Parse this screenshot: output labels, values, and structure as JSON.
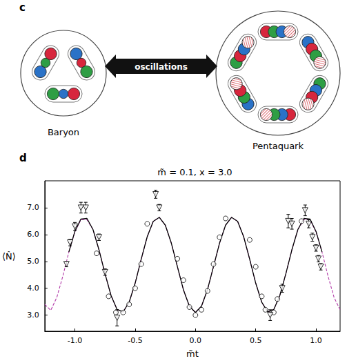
{
  "panel_c": {
    "letter": "c",
    "nodes": [
      {
        "label": "Baryon"
      },
      {
        "label": "Pentaquark"
      }
    ],
    "edge": {
      "label": "oscillations",
      "direction": "both"
    }
  },
  "panel_d": {
    "letter": "d"
  },
  "chart_data": {
    "type": "line",
    "title": "m̃ = 0.1, x = 3.0",
    "x_label": "m̃t",
    "y_label": "⟨N̂⟩",
    "xlim": [
      -1.25,
      1.2
    ],
    "ylim": [
      2.4,
      8.0
    ],
    "xticks": [
      {
        "value": -1.0,
        "label": "-1.0"
      },
      {
        "value": -0.5,
        "label": "-0.5"
      },
      {
        "value": 0.0,
        "label": "0.0"
      },
      {
        "value": 0.5,
        "label": "0.5"
      },
      {
        "value": 1.0,
        "label": "1.0"
      }
    ],
    "yticks": [
      {
        "value": 3.0,
        "label": "3.0"
      },
      {
        "value": 4.0,
        "label": "4.0"
      },
      {
        "value": 5.0,
        "label": "5.0"
      },
      {
        "value": 6.0,
        "label": "6.0"
      },
      {
        "value": 7.0,
        "label": "7.0"
      }
    ],
    "grid": false,
    "series": [
      {
        "type": "line",
        "color": "#b23aa8",
        "line_style": "dashed",
        "x": [
          -1.25,
          -1.2,
          -1.15,
          -1.1,
          -1.05,
          -1.0,
          -0.95,
          -0.9,
          -0.85,
          -0.8,
          -0.75,
          -0.7,
          -0.65,
          -0.6,
          -0.55,
          -0.5,
          -0.45,
          -0.4,
          -0.35,
          -0.3,
          -0.25,
          -0.2,
          -0.15,
          -0.1,
          -0.05,
          0.0,
          0.05,
          0.1,
          0.15,
          0.2,
          0.25,
          0.3,
          0.35,
          0.4,
          0.45,
          0.5,
          0.55,
          0.6,
          0.65,
          0.7,
          0.75,
          0.8,
          0.85,
          0.9,
          0.95,
          1.0,
          1.05,
          1.1,
          1.15,
          1.2
        ],
        "values": [
          3.4,
          3.18,
          3.66,
          4.45,
          5.35,
          6.1,
          6.55,
          6.55,
          6.19,
          5.43,
          4.54,
          3.73,
          3.21,
          3.12,
          3.48,
          4.19,
          5.08,
          5.92,
          6.49,
          6.64,
          6.35,
          5.68,
          4.81,
          3.95,
          3.33,
          3.1,
          3.33,
          3.95,
          4.81,
          5.68,
          6.35,
          6.64,
          6.49,
          5.92,
          5.08,
          4.19,
          3.48,
          3.12,
          3.21,
          3.73,
          4.54,
          5.43,
          6.19,
          6.55,
          6.55,
          6.1,
          5.35,
          4.45,
          3.66,
          3.2
        ]
      },
      {
        "type": "line",
        "color": "#000000",
        "line_style": "solid",
        "x": [
          -1.05,
          -1.0,
          -0.95,
          -0.9,
          -0.85,
          -0.8,
          -0.75,
          -0.7,
          -0.65,
          -0.6,
          -0.55,
          -0.5,
          -0.45,
          -0.4,
          -0.35,
          -0.3,
          -0.25,
          -0.2,
          -0.15,
          -0.1,
          -0.05,
          0.0,
          0.05,
          0.1,
          0.15,
          0.2,
          0.25,
          0.3,
          0.35,
          0.4,
          0.45,
          0.5,
          0.55,
          0.6,
          0.65,
          0.7,
          0.75,
          0.8,
          0.85,
          0.9,
          0.95,
          1.0,
          1.05
        ],
        "values": [
          5.35,
          6.12,
          6.58,
          6.6,
          6.19,
          5.43,
          4.54,
          3.73,
          3.21,
          3.12,
          3.48,
          4.19,
          5.08,
          5.92,
          6.49,
          6.64,
          6.35,
          5.68,
          4.81,
          3.95,
          3.33,
          3.1,
          3.33,
          3.95,
          4.81,
          5.68,
          6.35,
          6.64,
          6.49,
          5.92,
          5.08,
          4.19,
          3.48,
          3.12,
          3.21,
          3.73,
          4.54,
          5.43,
          6.19,
          6.6,
          6.58,
          6.12,
          5.35
        ]
      },
      {
        "type": "scatter",
        "color": "#000000",
        "marker": "circle",
        "x": [
          -0.82,
          -0.72,
          -0.66,
          -0.6,
          -0.55,
          -0.5,
          -0.45,
          -0.4,
          -0.15,
          -0.1,
          -0.05,
          0.0,
          0.05,
          0.1,
          0.15,
          0.2,
          0.25,
          0.45,
          0.5,
          0.55,
          0.58,
          0.65,
          0.68,
          0.88
        ],
        "values": [
          5.3,
          3.7,
          3.1,
          3.1,
          3.4,
          4.0,
          4.9,
          6.4,
          5.1,
          4.3,
          3.3,
          3.0,
          3.2,
          3.9,
          4.9,
          5.9,
          6.6,
          5.8,
          4.8,
          3.7,
          3.2,
          3.1,
          3.6,
          6.5
        ]
      },
      {
        "type": "scatter",
        "color": "#000000",
        "marker": "triangle-down",
        "x": [
          -1.07,
          -1.04,
          -1.0,
          -0.95,
          -0.91,
          -0.8,
          -0.75,
          -0.65,
          -0.33,
          -0.3,
          0.62,
          0.72,
          0.77,
          0.8,
          0.91,
          0.94,
          0.97,
          1.0,
          1.02,
          1.04
        ],
        "values": [
          4.9,
          5.7,
          6.3,
          7.0,
          7.0,
          5.9,
          4.6,
          2.9,
          7.5,
          7.0,
          3.0,
          4.0,
          6.5,
          6.4,
          6.9,
          6.4,
          5.9,
          5.5,
          5.1,
          4.8
        ],
        "errors": [
          0.1,
          0.12,
          0.15,
          0.2,
          0.2,
          0.12,
          0.12,
          0.3,
          0.15,
          0.12,
          0.2,
          0.15,
          0.25,
          0.2,
          0.2,
          0.15,
          0.15,
          0.12,
          0.12,
          0.12
        ]
      }
    ]
  }
}
